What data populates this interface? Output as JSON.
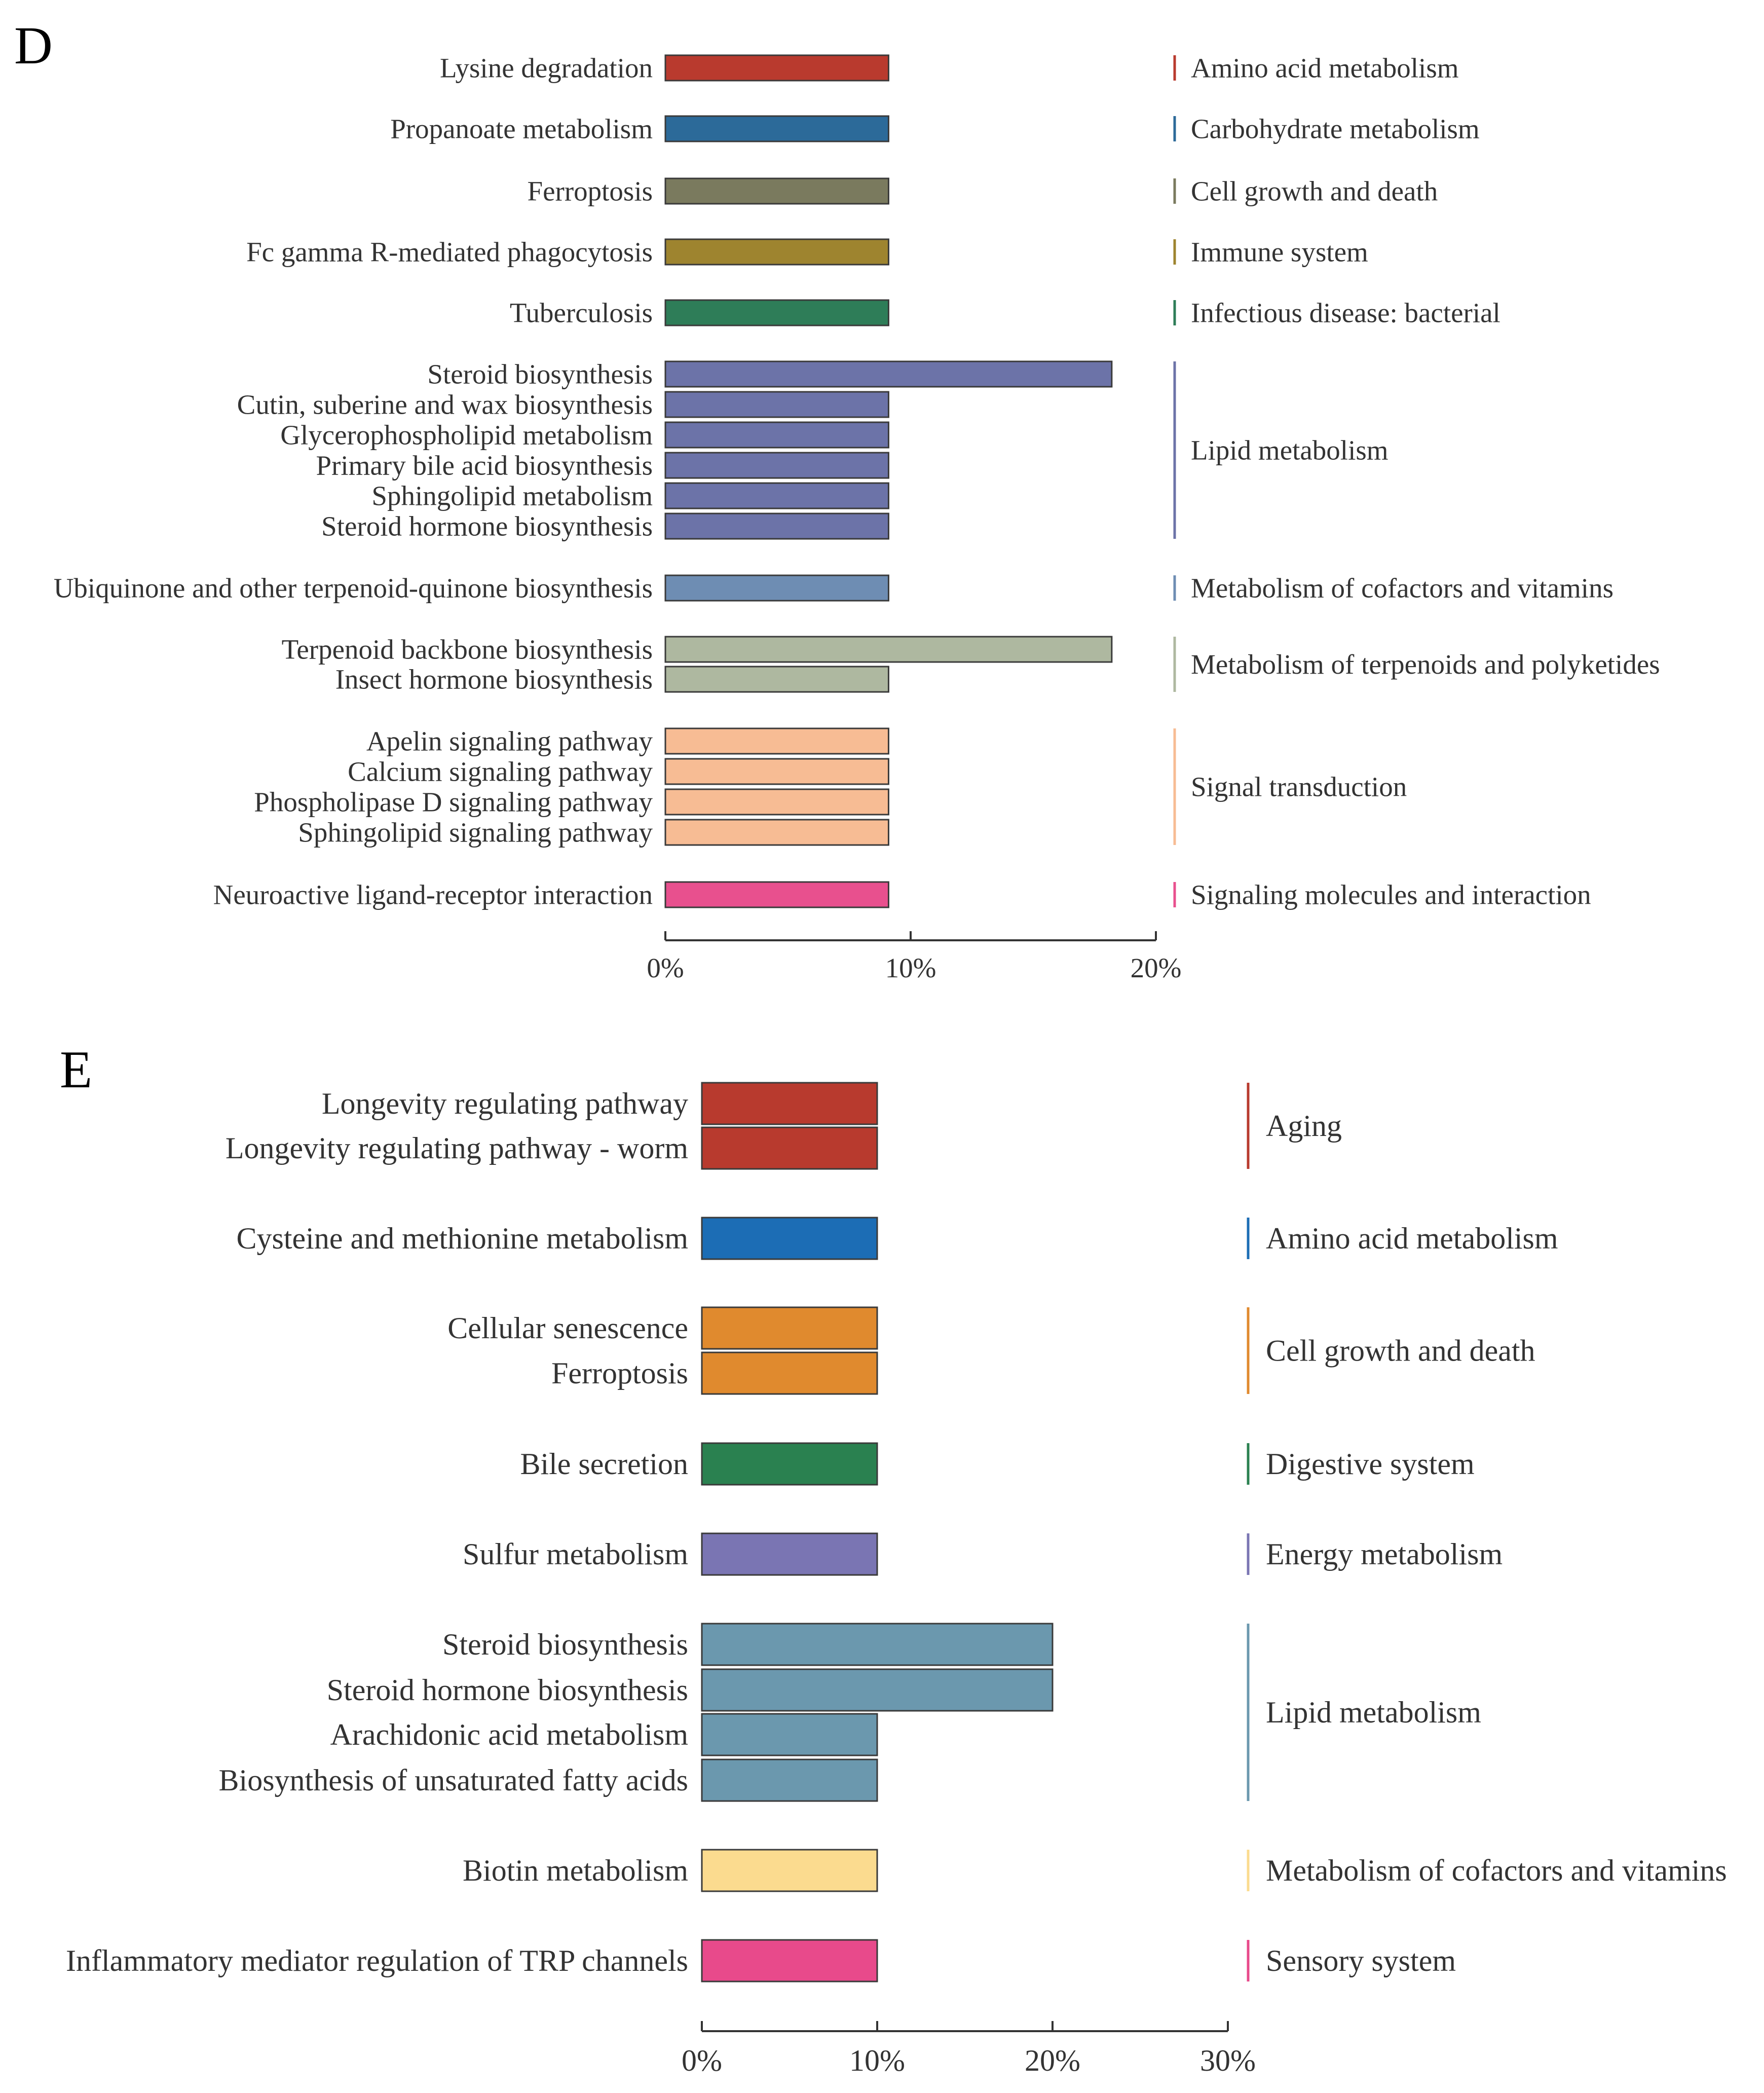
{
  "chart_data": [
    {
      "type": "bar",
      "orientation": "horizontal",
      "panel": "D",
      "xaxis_ticks": [
        "0%",
        "10%",
        "20%"
      ],
      "xlim": [
        0,
        20
      ],
      "unit": "%",
      "groups": [
        {
          "name": "Amino acid metabolism",
          "color": "#B93A2E",
          "bars": [
            {
              "label": "Lysine degradation",
              "value": 9.1
            }
          ]
        },
        {
          "name": "Carbohydrate metabolism",
          "color": "#2C6A99",
          "bars": [
            {
              "label": "Propanoate metabolism",
              "value": 9.1
            }
          ]
        },
        {
          "name": "Cell growth and death",
          "color": "#7A7A5E",
          "bars": [
            {
              "label": "Ferroptosis",
              "value": 9.1
            }
          ]
        },
        {
          "name": "Immune system",
          "color": "#9E842F",
          "bars": [
            {
              "label": "Fc gamma R-mediated phagocytosis",
              "value": 9.1
            }
          ]
        },
        {
          "name": "Infectious disease: bacterial",
          "color": "#2E7D58",
          "bars": [
            {
              "label": "Tuberculosis",
              "value": 9.1
            }
          ]
        },
        {
          "name": "Lipid metabolism",
          "color": "#6C73A8",
          "bars": [
            {
              "label": "Steroid biosynthesis",
              "value": 18.2
            },
            {
              "label": "Cutin, suberine and wax biosynthesis",
              "value": 9.1
            },
            {
              "label": "Glycerophospholipid metabolism",
              "value": 9.1
            },
            {
              "label": "Primary bile acid biosynthesis",
              "value": 9.1
            },
            {
              "label": "Sphingolipid metabolism",
              "value": 9.1
            },
            {
              "label": "Steroid hormone biosynthesis",
              "value": 9.1
            }
          ]
        },
        {
          "name": "Metabolism of cofactors and vitamins",
          "color": "#6E8DB3",
          "bars": [
            {
              "label": "Ubiquinone and other terpenoid-quinone biosynthesis",
              "value": 9.1
            }
          ]
        },
        {
          "name": "Metabolism  of terpenoids  and  polyketides",
          "color": "#AEB8A0",
          "bars": [
            {
              "label": "Terpenoid backbone biosynthesis",
              "value": 18.2
            },
            {
              "label": "Insect hormone biosynthesis",
              "value": 9.1
            }
          ]
        },
        {
          "name": "Signal transduction",
          "color": "#F7BC94",
          "bars": [
            {
              "label": "Apelin signaling pathway",
              "value": 9.1
            },
            {
              "label": "Calcium signaling pathway",
              "value": 9.1
            },
            {
              "label": "Phospholipase D signaling pathway",
              "value": 9.1
            },
            {
              "label": "Sphingolipid signaling pathway",
              "value": 9.1
            }
          ]
        },
        {
          "name": "Signaling molecules and interaction",
          "color": "#E8508E",
          "bars": [
            {
              "label": "Neuroactive ligand-receptor interaction",
              "value": 9.1
            }
          ]
        }
      ]
    },
    {
      "type": "bar",
      "orientation": "horizontal",
      "panel": "E",
      "xaxis_ticks": [
        "0%",
        "10%",
        "20%",
        "30%"
      ],
      "xlim": [
        0,
        30
      ],
      "unit": "%",
      "groups": [
        {
          "name": "Aging",
          "color": "#B83A2E",
          "bars": [
            {
              "label": "Longevity regulating pathway",
              "value": 10
            },
            {
              "label": "Longevity regulating pathway - worm",
              "value": 10
            }
          ]
        },
        {
          "name": "Amino acid metabolism",
          "color": "#1C6DB5",
          "bars": [
            {
              "label": "Cysteine and methionine metabolism",
              "value": 10
            }
          ]
        },
        {
          "name": "Cell growth and death",
          "color": "#E08A2E",
          "bars": [
            {
              "label": "Cellular senescence",
              "value": 10
            },
            {
              "label": "Ferroptosis",
              "value": 10
            }
          ]
        },
        {
          "name": "Digestive system",
          "color": "#2A8150",
          "bars": [
            {
              "label": "Bile secretion",
              "value": 10
            }
          ]
        },
        {
          "name": "Energy metabolism",
          "color": "#7A75B3",
          "bars": [
            {
              "label": "Sulfur metabolism",
              "value": 10
            }
          ]
        },
        {
          "name": "Lipid metabolism",
          "color": "#6B98AE",
          "bars": [
            {
              "label": "Steroid biosynthesis",
              "value": 20
            },
            {
              "label": "Steroid hormone biosynthesis",
              "value": 20
            },
            {
              "label": "Arachidonic acid metabolism",
              "value": 10
            },
            {
              "label": "Biosynthesis of unsaturated fatty acids",
              "value": 10
            }
          ]
        },
        {
          "name": "Metabolism of cofactors and vitamins",
          "color": "#FBDB8F",
          "bars": [
            {
              "label": "Biotin metabolism",
              "value": 10
            }
          ]
        },
        {
          "name": "Sensory system",
          "color": "#E84A8B",
          "bars": [
            {
              "label": "Inflammatory mediator regulation of TRP channels",
              "value": 10
            }
          ]
        }
      ]
    }
  ]
}
